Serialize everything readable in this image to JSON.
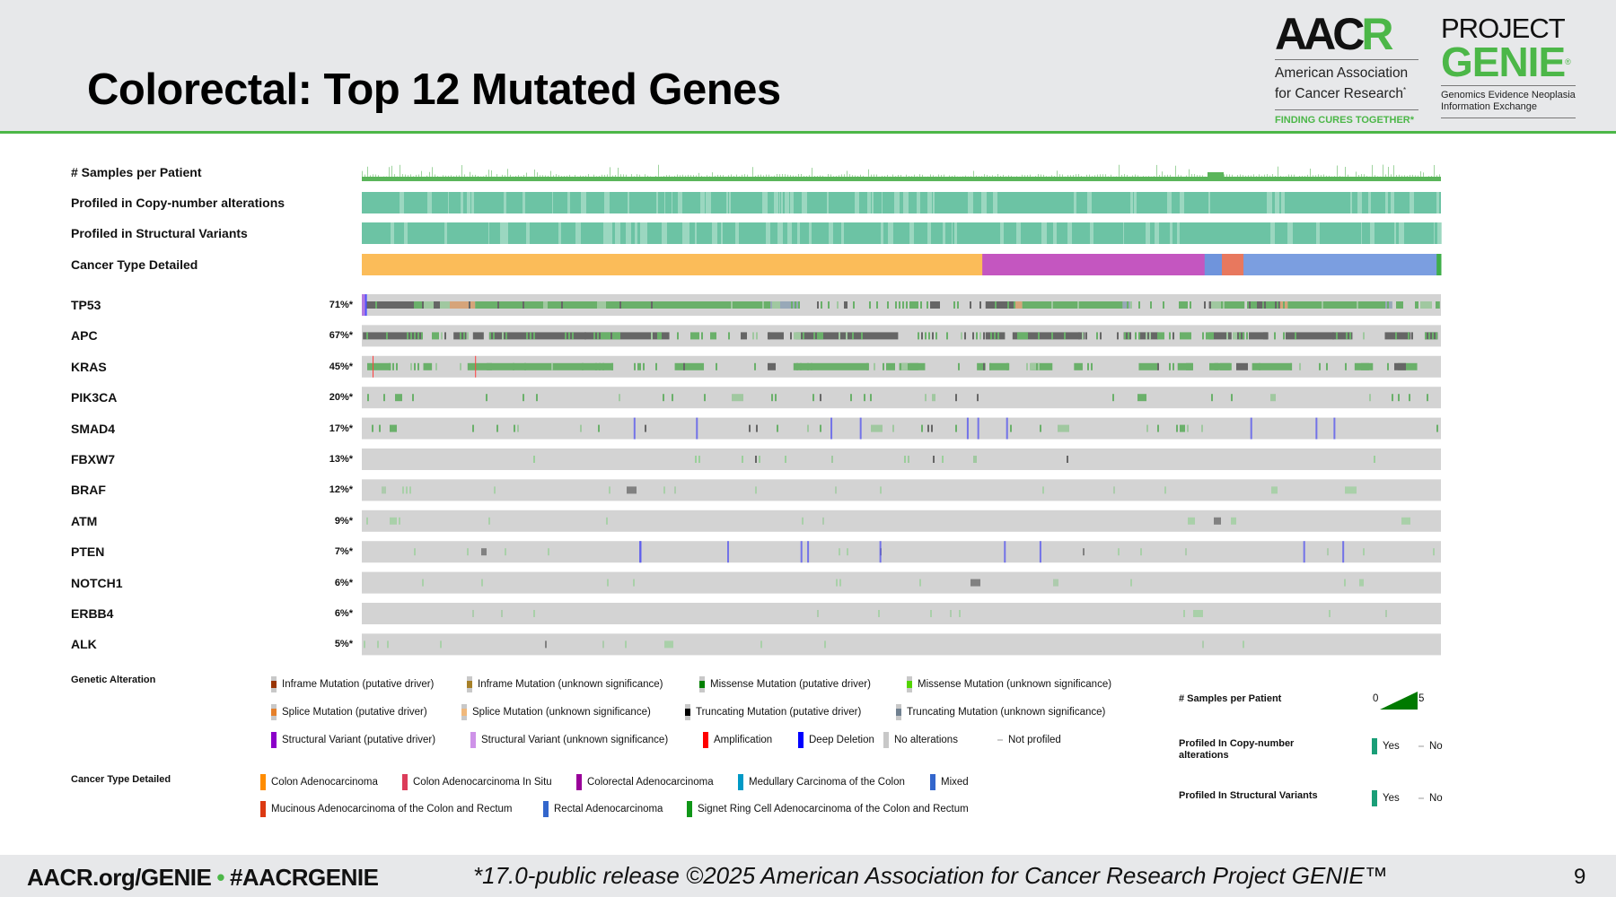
{
  "header": {
    "title": "Colorectal: Top 12 Mutated Genes",
    "aacr_logo": {
      "mark_a": "AAC",
      "mark_b": "R",
      "name_line1": "American Association",
      "name_line2": "for Cancer Research",
      "reg": "*",
      "tagline": "FINDING CURES TOGETHER*"
    },
    "genie_logo": {
      "project": "PROJECT",
      "genie": "GENIE",
      "reg": "®",
      "sub_line1": "Genomics Evidence Neoplasia",
      "sub_line2": "Information Exchange"
    }
  },
  "chart_data": {
    "type": "heatmap",
    "subtype": "oncoprint",
    "title": "Colorectal: Top 12 Mutated Genes",
    "clinical_tracks": [
      {
        "label": "# Samples per Patient"
      },
      {
        "label": "Profiled in Copy-number alterations"
      },
      {
        "label": "Profiled in Structural Variants"
      },
      {
        "label": "Cancer Type Detailed"
      }
    ],
    "cancer_type_segments": [
      {
        "type": "Colon Adenocarcinoma",
        "fraction": 0.575,
        "color": "#fbbc59"
      },
      {
        "type": "Colorectal Adenocarcinoma",
        "fraction": 0.206,
        "color": "#c456c0"
      },
      {
        "type": "Mixed",
        "fraction": 0.016,
        "color": "#6f94dc"
      },
      {
        "type": "Mucinous Adenocarcinoma of the Colon and Rectum",
        "fraction": 0.02,
        "color": "#e8785e"
      },
      {
        "type": "Rectal Adenocarcinoma",
        "fraction": 0.179,
        "color": "#7b9ee0"
      },
      {
        "type": "Signet Ring Cell Adenocarcinoma of the Colon and Rectum",
        "fraction": 0.004,
        "color": "#3fae4a"
      }
    ],
    "genes": [
      {
        "name": "TP53",
        "pct": "71%*",
        "value": 71
      },
      {
        "name": "APC",
        "pct": "67%*",
        "value": 67
      },
      {
        "name": "KRAS",
        "pct": "45%*",
        "value": 45
      },
      {
        "name": "PIK3CA",
        "pct": "20%*",
        "value": 20
      },
      {
        "name": "SMAD4",
        "pct": "17%*",
        "value": 17
      },
      {
        "name": "FBXW7",
        "pct": "13%*",
        "value": 13
      },
      {
        "name": "BRAF",
        "pct": "12%*",
        "value": 12
      },
      {
        "name": "ATM",
        "pct": "9%*",
        "value": 9
      },
      {
        "name": "PTEN",
        "pct": "7%*",
        "value": 7
      },
      {
        "name": "NOTCH1",
        "pct": "6%*",
        "value": 6
      },
      {
        "name": "ERBB4",
        "pct": "6%*",
        "value": 6
      },
      {
        "name": "ALK",
        "pct": "5%*",
        "value": 5
      }
    ]
  },
  "legend": {
    "genetic_alteration": {
      "title": "Genetic Alteration",
      "items": [
        {
          "label": "Inframe Mutation (putative driver)",
          "color": "#993404"
        },
        {
          "label": "Inframe Mutation (unknown significance)",
          "color": "#a68028"
        },
        {
          "label": "Missense Mutation (putative driver)",
          "color": "#008000"
        },
        {
          "label": "Missense Mutation (unknown significance)",
          "color": "#53d400"
        },
        {
          "label": "Splice Mutation (putative driver)",
          "color": "#e5802b"
        },
        {
          "label": "Splice Mutation (unknown significance)",
          "color": "#f0b87b"
        },
        {
          "label": "Truncating Mutation (putative driver)",
          "color": "#000000"
        },
        {
          "label": "Truncating Mutation (unknown significance)",
          "color": "#708090"
        },
        {
          "label": "Structural Variant (putative driver)",
          "color": "#8b00c9"
        },
        {
          "label": "Structural Variant (unknown significance)",
          "color": "#ce92e8"
        },
        {
          "label": "Amplification",
          "color": "#ff0000"
        },
        {
          "label": "Deep Deletion",
          "color": "#0000ff"
        },
        {
          "label": "No alterations",
          "color": "#c8c8c8"
        },
        {
          "label": "Not profiled",
          "color": "#e0e0e0"
        }
      ]
    },
    "cancer_type": {
      "title": "Cancer Type Detailed",
      "items": [
        {
          "label": "Colon Adenocarcinoma",
          "color": "#ff8c00"
        },
        {
          "label": "Colon Adenocarcinoma In Situ",
          "color": "#dc3c5a"
        },
        {
          "label": "Colorectal Adenocarcinoma",
          "color": "#990099"
        },
        {
          "label": "Medullary Carcinoma of the Colon",
          "color": "#0099c6"
        },
        {
          "label": "Mixed",
          "color": "#3366cc"
        },
        {
          "label": "Mucinous Adenocarcinoma of the Colon and Rectum",
          "color": "#dc3912"
        },
        {
          "label": "Rectal Adenocarcinoma",
          "color": "#3366cc"
        },
        {
          "label": "Signet Ring Cell Adenocarcinoma of the Colon and Rectum",
          "color": "#109618"
        }
      ]
    },
    "samples_per_patient": {
      "title": "# Samples per Patient",
      "min": "0",
      "max": "5",
      "color": "#007a00"
    },
    "profiled_cna": {
      "title_line1": "Profiled In Copy-number",
      "title_line2": "alterations",
      "yes": "Yes",
      "no": "No",
      "color": "#1a9e77"
    },
    "profiled_sv": {
      "title": "Profiled In Structural Variants",
      "yes": "Yes",
      "no": "No",
      "color": "#1a9e77"
    }
  },
  "footer": {
    "site": "AACR.org/GENIE",
    "dot": "•",
    "hashtag": "#AACRGENIE",
    "release_note": "*17.0-public release ©2025 American Association for Cancer Research Project GENIE™",
    "page_number": "9"
  }
}
